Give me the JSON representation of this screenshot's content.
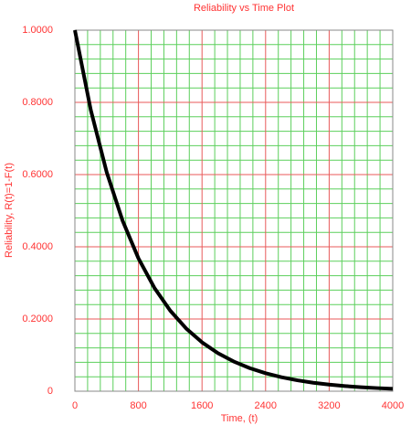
{
  "chart_data": {
    "type": "line",
    "title": "Reliability vs Time Plot",
    "xlabel": "Time, (t)",
    "ylabel": "Reliability, R(t)=1-F(t)",
    "x": [
      0,
      200,
      400,
      600,
      800,
      1000,
      1200,
      1400,
      1600,
      1800,
      2000,
      2200,
      2400,
      2600,
      2800,
      3000,
      3200,
      3400,
      3600,
      3800,
      4000
    ],
    "series": [
      {
        "name": "R(t)",
        "color": "#000000",
        "values": [
          1,
          0.7788,
          0.6065,
          0.4724,
          0.3679,
          0.2865,
          0.2231,
          0.1738,
          0.1353,
          0.1054,
          0.0821,
          0.0639,
          0.0498,
          0.0388,
          0.0302,
          0.0235,
          0.0183,
          0.0143,
          0.0111,
          0.0087,
          0.0067
        ]
      }
    ],
    "xlim": [
      0,
      4000
    ],
    "xticks": [
      0,
      800,
      1600,
      2400,
      3200,
      4000
    ],
    "ylim": [
      0,
      1
    ],
    "yticks": [
      0,
      {
        "value": 0.2,
        "label": "0.2000"
      },
      {
        "value": 0.4,
        "label": "0.4000"
      },
      {
        "value": 0.6,
        "label": "0.6000"
      },
      {
        "value": 0.8,
        "label": "0.8000"
      },
      {
        "value": 1,
        "label": "1.0000"
      }
    ],
    "grid": true,
    "minor_grid_divisions": 5,
    "major_grid_color": "#e85a5a",
    "minor_grid_color": "#5ccf5c",
    "text_color": "#ff3333"
  }
}
